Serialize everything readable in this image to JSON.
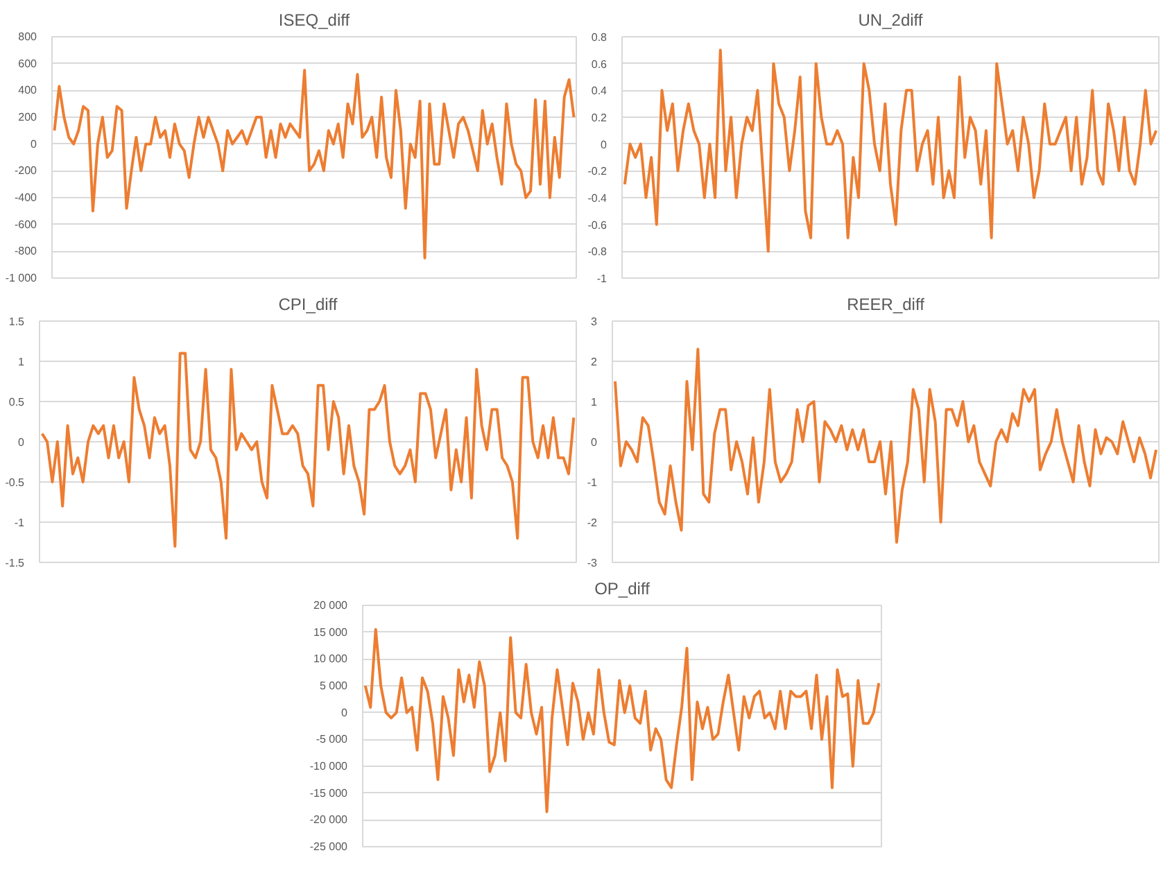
{
  "chart_data": [
    {
      "type": "line",
      "title": "ISEQ_diff",
      "grid": "y",
      "tick_labels": "y",
      "color": "#ed7d31",
      "categories": [
        null,
        null,
        null,
        null,
        null,
        null,
        null,
        null,
        null,
        null,
        null,
        null,
        null,
        null,
        null,
        null,
        null,
        null,
        null,
        null,
        null,
        null,
        null,
        null,
        null,
        null,
        null,
        null,
        null,
        null,
        null,
        null,
        null,
        null,
        null,
        null,
        null,
        null,
        null,
        null,
        null,
        null,
        null,
        null,
        null,
        null,
        null,
        null,
        null,
        null,
        null,
        null,
        null,
        null,
        null,
        null,
        null,
        null,
        null,
        null,
        null,
        null,
        null,
        null,
        null,
        null,
        null,
        null,
        null,
        null,
        null,
        null,
        null,
        null,
        null,
        null,
        null,
        null,
        null,
        null,
        null,
        null,
        null,
        null,
        null,
        null,
        null,
        null,
        null,
        null,
        null,
        null,
        null,
        null,
        null,
        null,
        null,
        null,
        null,
        null,
        null,
        null,
        null,
        null,
        null,
        null,
        null,
        null,
        null
      ],
      "values": [
        100,
        430,
        200,
        50,
        0,
        100,
        280,
        250,
        -500,
        0,
        200,
        -100,
        -50,
        280,
        250,
        -480,
        -200,
        50,
        -200,
        0,
        0,
        200,
        50,
        100,
        -100,
        150,
        0,
        -50,
        -250,
        0,
        200,
        50,
        200,
        100,
        0,
        -200,
        100,
        0,
        50,
        100,
        0,
        100,
        200,
        200,
        -100,
        100,
        -100,
        150,
        50,
        150,
        100,
        50,
        550,
        -200,
        -150,
        -50,
        -200,
        100,
        0,
        150,
        -100,
        300,
        150,
        520,
        50,
        100,
        200,
        -100,
        350,
        -100,
        -250,
        400,
        100,
        -480,
        0,
        -100,
        320,
        -850,
        300,
        -150,
        -150,
        300,
        100,
        -100,
        150,
        200,
        100,
        -50,
        -200,
        250,
        0,
        150,
        -100,
        -300,
        300,
        0,
        -150,
        -200,
        -400,
        -350,
        330,
        -300,
        320,
        -400,
        50,
        -250,
        350,
        480,
        200
      ],
      "ylim": [
        -1000,
        800
      ],
      "yticks": [
        800,
        600,
        400,
        200,
        0,
        -200,
        -400,
        -600,
        -800,
        {
          "value": -1000,
          "label": "-1 000"
        }
      ]
    },
    {
      "type": "line",
      "title": "UN_2diff",
      "grid": "y",
      "tick_labels": "y",
      "color": "#ed7d31",
      "categories": [
        null,
        null,
        null,
        null,
        null,
        null,
        null,
        null,
        null,
        null,
        null,
        null,
        null,
        null,
        null,
        null,
        null,
        null,
        null,
        null,
        null,
        null,
        null,
        null,
        null,
        null,
        null,
        null,
        null,
        null,
        null,
        null,
        null,
        null,
        null,
        null,
        null,
        null,
        null,
        null,
        null,
        null,
        null,
        null,
        null,
        null,
        null,
        null,
        null,
        null,
        null,
        null,
        null,
        null,
        null,
        null,
        null,
        null,
        null,
        null,
        null,
        null,
        null,
        null,
        null,
        null,
        null,
        null,
        null,
        null,
        null,
        null,
        null,
        null,
        null,
        null,
        null,
        null,
        null,
        null,
        null,
        null,
        null,
        null,
        null,
        null,
        null,
        null,
        null,
        null,
        null,
        null,
        null,
        null,
        null,
        null,
        null,
        null,
        null,
        null,
        null
      ],
      "values": [
        -0.3,
        0,
        -0.1,
        0,
        -0.4,
        -0.1,
        -0.6,
        0.4,
        0.1,
        0.3,
        -0.2,
        0.1,
        0.3,
        0.1,
        0,
        -0.4,
        0,
        -0.4,
        0.7,
        -0.2,
        0.2,
        -0.4,
        0,
        0.2,
        0.1,
        0.4,
        -0.2,
        -0.8,
        0.6,
        0.3,
        0.2,
        -0.2,
        0.1,
        0.5,
        -0.5,
        -0.7,
        0.6,
        0.2,
        0,
        0,
        0.1,
        0,
        -0.7,
        -0.1,
        -0.4,
        0.6,
        0.4,
        0,
        -0.2,
        0.3,
        -0.3,
        -0.6,
        0.1,
        0.4,
        0.4,
        -0.2,
        0,
        0.1,
        -0.3,
        0.2,
        -0.4,
        -0.2,
        -0.4,
        0.5,
        -0.1,
        0.2,
        0.1,
        -0.3,
        0.1,
        -0.7,
        0.6,
        0.3,
        0,
        0.1,
        -0.2,
        0.2,
        0,
        -0.4,
        -0.2,
        0.3,
        0,
        0,
        0.1,
        0.2,
        -0.2,
        0.2,
        -0.3,
        -0.1,
        0.4,
        -0.2,
        -0.3,
        0.3,
        0.1,
        -0.2,
        0.2,
        -0.2,
        -0.3,
        0,
        0.4,
        0,
        0.1
      ],
      "ylim": [
        -1,
        0.8
      ],
      "yticks": [
        0.8,
        0.6,
        0.4,
        0.2,
        0,
        -0.2,
        -0.4,
        -0.6,
        -0.8,
        -1
      ]
    },
    {
      "type": "line",
      "title": "CPI_diff",
      "grid": "y",
      "tick_labels": "y",
      "color": "#ed7d31",
      "categories": [
        null,
        null,
        null,
        null,
        null,
        null,
        null,
        null,
        null,
        null,
        null,
        null,
        null,
        null,
        null,
        null,
        null,
        null,
        null,
        null,
        null,
        null,
        null,
        null,
        null,
        null,
        null,
        null,
        null,
        null,
        null,
        null,
        null,
        null,
        null,
        null,
        null,
        null,
        null,
        null,
        null,
        null,
        null,
        null,
        null,
        null,
        null,
        null,
        null,
        null,
        null,
        null,
        null,
        null,
        null,
        null,
        null,
        null,
        null,
        null,
        null,
        null,
        null,
        null,
        null,
        null,
        null,
        null,
        null,
        null,
        null,
        null,
        null,
        null,
        null,
        null,
        null,
        null,
        null,
        null,
        null,
        null,
        null,
        null,
        null,
        null,
        null,
        null,
        null,
        null,
        null,
        null,
        null,
        null,
        null,
        null,
        null,
        null,
        null,
        null,
        null,
        null,
        null,
        null,
        null
      ],
      "values": [
        0.1,
        0,
        -0.5,
        0,
        -0.8,
        0.2,
        -0.4,
        -0.2,
        -0.5,
        0,
        0.2,
        0.1,
        0.2,
        -0.2,
        0.2,
        -0.2,
        0,
        -0.5,
        0.8,
        0.4,
        0.2,
        -0.2,
        0.3,
        0.1,
        0.2,
        -0.3,
        -1.3,
        1.1,
        1.1,
        -0.1,
        -0.2,
        0,
        0.9,
        -0.1,
        -0.2,
        -0.5,
        -1.2,
        0.9,
        -0.1,
        0.1,
        0,
        -0.1,
        0,
        -0.5,
        -0.7,
        0.7,
        0.4,
        0.1,
        0.1,
        0.2,
        0.1,
        -0.3,
        -0.4,
        -0.8,
        0.7,
        0.7,
        -0.1,
        0.5,
        0.3,
        -0.4,
        0.2,
        -0.3,
        -0.5,
        -0.9,
        0.4,
        0.4,
        0.5,
        0.7,
        0,
        -0.3,
        -0.4,
        -0.3,
        -0.1,
        -0.5,
        0.6,
        0.6,
        0.4,
        -0.2,
        0.1,
        0.4,
        -0.6,
        -0.1,
        -0.5,
        0.3,
        -0.7,
        0.9,
        0.2,
        -0.1,
        0.4,
        0.4,
        -0.2,
        -0.3,
        -0.5,
        -1.2,
        0.8,
        0.8,
        0,
        -0.2,
        0.2,
        -0.2,
        0.3,
        -0.2,
        -0.2,
        -0.4,
        0.3
      ],
      "ylim": [
        -1.5,
        1.5
      ],
      "yticks": [
        1.5,
        1,
        0.5,
        0,
        -0.5,
        -1,
        -1.5
      ]
    },
    {
      "type": "line",
      "title": "REER_diff",
      "grid": "y",
      "tick_labels": "y",
      "color": "#ed7d31",
      "categories": [
        null,
        null,
        null,
        null,
        null,
        null,
        null,
        null,
        null,
        null,
        null,
        null,
        null,
        null,
        null,
        null,
        null,
        null,
        null,
        null,
        null,
        null,
        null,
        null,
        null,
        null,
        null,
        null,
        null,
        null,
        null,
        null,
        null,
        null,
        null,
        null,
        null,
        null,
        null,
        null,
        null,
        null,
        null,
        null,
        null,
        null,
        null,
        null,
        null,
        null,
        null,
        null,
        null,
        null,
        null,
        null,
        null,
        null,
        null,
        null,
        null,
        null,
        null,
        null,
        null,
        null,
        null,
        null,
        null,
        null,
        null,
        null,
        null,
        null,
        null,
        null,
        null,
        null,
        null,
        null,
        null,
        null,
        null,
        null,
        null,
        null,
        null,
        null,
        null,
        null,
        null,
        null,
        null,
        null,
        null,
        null,
        null,
        null,
        null
      ],
      "values": [
        1.5,
        -0.6,
        0,
        -0.2,
        -0.5,
        0.6,
        0.4,
        -0.5,
        -1.5,
        -1.8,
        -0.6,
        -1.5,
        -2.2,
        1.5,
        -0.2,
        2.3,
        -1.3,
        -1.5,
        0.2,
        0.8,
        0.8,
        -0.7,
        0,
        -0.5,
        -1.3,
        0.1,
        -1.5,
        -0.5,
        1.3,
        -0.5,
        -1,
        -0.8,
        -0.5,
        0.8,
        0,
        0.9,
        1,
        -1,
        0.5,
        0.3,
        0,
        0.4,
        -0.2,
        0.3,
        -0.2,
        0.3,
        -0.5,
        -0.5,
        0,
        -1.3,
        0,
        -2.5,
        -1.2,
        -0.5,
        1.3,
        0.8,
        -1,
        1.3,
        0.5,
        -2,
        0.8,
        0.8,
        0.4,
        1,
        0,
        0.4,
        -0.5,
        -0.8,
        -1.1,
        0,
        0.3,
        0,
        0.7,
        0.4,
        1.3,
        1,
        1.3,
        -0.7,
        -0.3,
        0,
        0.8,
        0,
        -0.5,
        -1,
        0.4,
        -0.5,
        -1.1,
        0.3,
        -0.3,
        0.1,
        0,
        -0.3,
        0.5,
        0,
        -0.5,
        0.1,
        -0.3,
        -0.9,
        -0.2
      ],
      "ylim": [
        -3,
        3
      ],
      "yticks": [
        3,
        2,
        1,
        0,
        -1,
        -2,
        -3
      ]
    },
    {
      "type": "line",
      "title": "OP_diff",
      "grid": "y",
      "tick_labels": "y",
      "color": "#ed7d31",
      "categories": [
        null,
        null,
        null,
        null,
        null,
        null,
        null,
        null,
        null,
        null,
        null,
        null,
        null,
        null,
        null,
        null,
        null,
        null,
        null,
        null,
        null,
        null,
        null,
        null,
        null,
        null,
        null,
        null,
        null,
        null,
        null,
        null,
        null,
        null,
        null,
        null,
        null,
        null,
        null,
        null,
        null,
        null,
        null,
        null,
        null,
        null,
        null,
        null,
        null,
        null,
        null,
        null,
        null,
        null,
        null,
        null,
        null,
        null,
        null,
        null,
        null,
        null,
        null,
        null,
        null,
        null,
        null,
        null,
        null,
        null,
        null,
        null,
        null,
        null,
        null,
        null,
        null,
        null,
        null,
        null,
        null,
        null,
        null,
        null,
        null,
        null,
        null,
        null,
        null,
        null,
        null,
        null,
        null,
        null,
        null,
        null,
        null,
        null,
        null,
        null
      ],
      "values": [
        5000,
        1000,
        15500,
        5000,
        0,
        -1000,
        0,
        6500,
        0,
        1000,
        -7000,
        6500,
        4000,
        -2000,
        -12500,
        3000,
        -1000,
        -8000,
        8000,
        2000,
        7000,
        1000,
        9500,
        5000,
        -11000,
        -8000,
        0,
        -9000,
        14000,
        0,
        -1000,
        9000,
        0,
        -4000,
        1000,
        -18500,
        -1000,
        8000,
        1000,
        -6000,
        5500,
        2000,
        -5000,
        0,
        -4000,
        8000,
        0,
        -5500,
        -6000,
        6000,
        0,
        5000,
        -1000,
        -2000,
        4000,
        -7000,
        -3000,
        -5000,
        -12500,
        -14000,
        -6000,
        1000,
        12000,
        -12500,
        2000,
        -3000,
        1000,
        -5000,
        -4000,
        2000,
        7000,
        0,
        -7000,
        3000,
        -1000,
        3000,
        4000,
        -1000,
        0,
        -3000,
        4000,
        -3000,
        4000,
        3000,
        3000,
        4000,
        -3000,
        7000,
        -5000,
        3000,
        -14000,
        8000,
        3000,
        3500,
        -10000,
        6000,
        -2000,
        -2000,
        0,
        5500
      ],
      "ylim": [
        -25000,
        20000
      ],
      "yticks": [
        {
          "value": 20000,
          "label": "20 000"
        },
        {
          "value": 15000,
          "label": "15 000"
        },
        {
          "value": 10000,
          "label": "10 000"
        },
        {
          "value": 5000,
          "label": "5 000"
        },
        0,
        {
          "value": -5000,
          "label": "-5 000"
        },
        {
          "value": -10000,
          "label": "-10 000"
        },
        {
          "value": -15000,
          "label": "-15 000"
        },
        {
          "value": -20000,
          "label": "-20 000"
        },
        {
          "value": -25000,
          "label": "-25 000"
        }
      ]
    }
  ]
}
